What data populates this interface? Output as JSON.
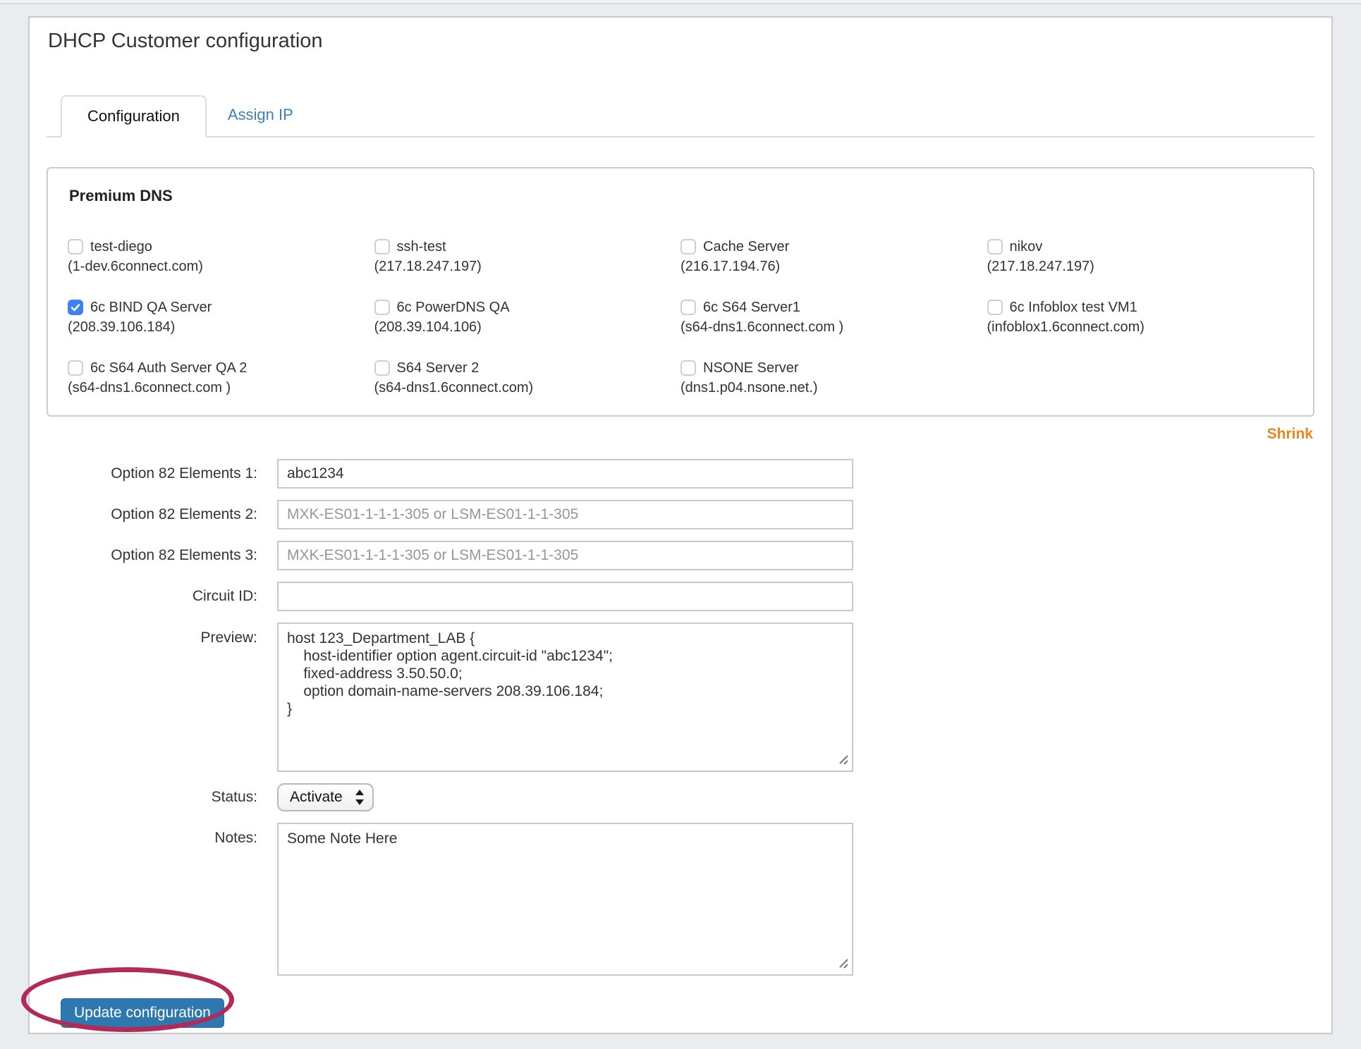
{
  "page": {
    "title": "DHCP Customer configuration",
    "tabs": [
      {
        "label": "Configuration",
        "active": true
      },
      {
        "label": "Assign IP",
        "active": false
      }
    ],
    "shrink_label": "Shrink"
  },
  "premium_dns": {
    "heading": "Premium DNS",
    "servers": [
      {
        "name": "test-diego",
        "detail": "(1-dev.6connect.com)",
        "checked": false
      },
      {
        "name": "ssh-test",
        "detail": "(217.18.247.197)",
        "checked": false
      },
      {
        "name": "Cache Server",
        "detail": "(216.17.194.76)",
        "checked": false
      },
      {
        "name": "nikov",
        "detail": "(217.18.247.197)",
        "checked": false
      },
      {
        "name": "6c BIND QA Server",
        "detail": "(208.39.106.184)",
        "checked": true
      },
      {
        "name": "6c PowerDNS QA",
        "detail": "(208.39.104.106)",
        "checked": false
      },
      {
        "name": "6c S64 Server1",
        "detail": "(s64-dns1.6connect.com )",
        "checked": false
      },
      {
        "name": "6c Infoblox test VM1",
        "detail": "(infoblox1.6connect.com)",
        "checked": false
      },
      {
        "name": "6c S64 Auth Server QA 2",
        "detail": "(s64-dns1.6connect.com )",
        "checked": false
      },
      {
        "name": "S64 Server 2",
        "detail": "(s64-dns1.6connect.com)",
        "checked": false
      },
      {
        "name": "NSONE Server",
        "detail": "(dns1.p04.nsone.net.)",
        "checked": false
      }
    ]
  },
  "form": {
    "option82_1": {
      "label": "Option 82 Elements 1:",
      "value": "abc1234"
    },
    "option82_2": {
      "label": "Option 82 Elements 2:",
      "placeholder": "MXK-ES01-1-1-1-305 or LSM-ES01-1-1-305"
    },
    "option82_3": {
      "label": "Option 82 Elements 3:",
      "placeholder": "MXK-ES01-1-1-1-305 or LSM-ES01-1-1-305"
    },
    "circuit_id": {
      "label": "Circuit ID:",
      "value": ""
    },
    "preview": {
      "label": "Preview:",
      "value": "host 123_Department_LAB {\n    host-identifier option agent.circuit-id \"abc1234\";\n    fixed-address 3.50.50.0;\n    option domain-name-servers 208.39.106.184;\n}"
    },
    "status": {
      "label": "Status:",
      "selected": "Activate"
    },
    "notes": {
      "label": "Notes:",
      "value": "Some Note Here"
    },
    "submit_label": "Update configuration"
  },
  "colors": {
    "accent_blue": "#2e78b0",
    "link_blue": "#3e7fb2",
    "checkbox_blue": "#3e80f6",
    "shrink_orange": "#ec851b",
    "annotation_crimson": "#b12a5a"
  }
}
